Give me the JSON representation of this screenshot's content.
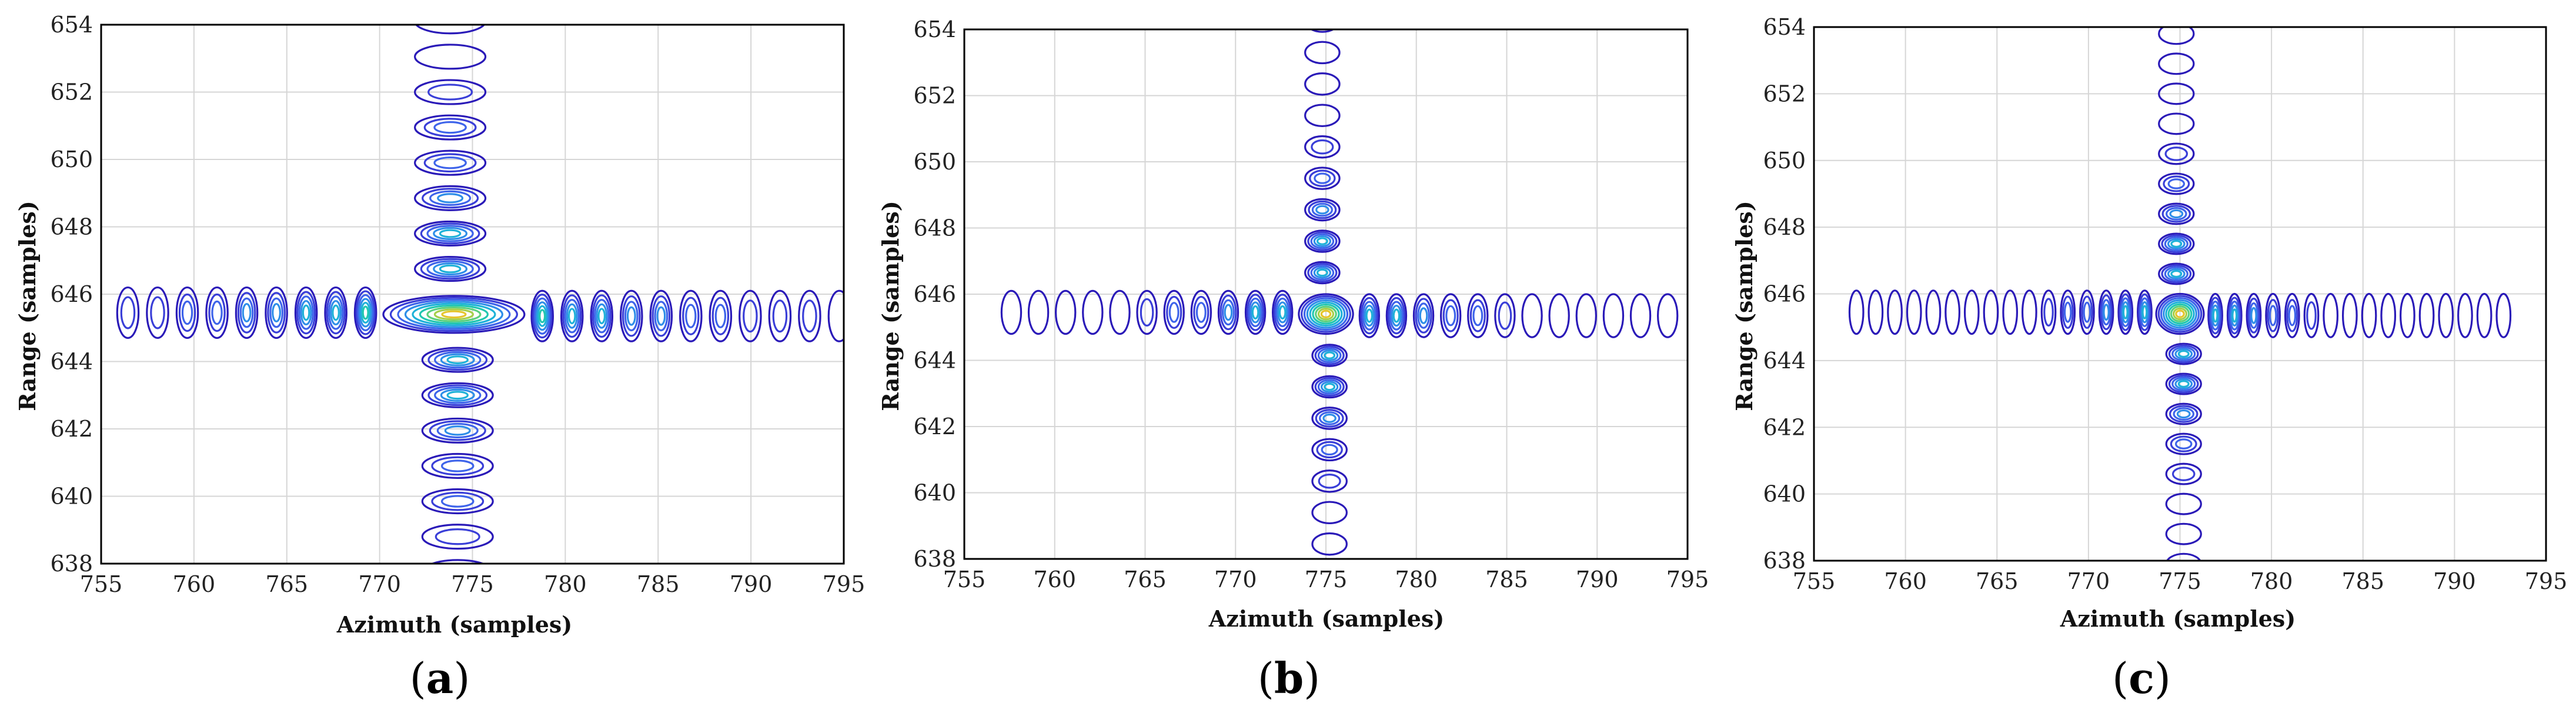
{
  "chart_data": [
    {
      "type": "contour",
      "panel_label_text": "a",
      "xlabel": "Azimuth (samples)",
      "ylabel": "Range (samples)",
      "xlim": [
        755,
        795
      ],
      "ylim": [
        638,
        654
      ],
      "xticks": [
        755,
        760,
        765,
        770,
        775,
        780,
        785,
        790,
        795
      ],
      "yticks": [
        638,
        640,
        642,
        644,
        646,
        648,
        650,
        652,
        654
      ],
      "grid": true,
      "peak": {
        "azimuth": 774,
        "range": 645.4
      },
      "main_lobe": {
        "azimuth_halfwidth": 3.8,
        "range_halfwidth": 0.55
      },
      "range_sidelobe_spacing": 1.05,
      "azimuth_sidelobe_spacing": 1.6,
      "azimuth_extent": [
        755,
        795
      ],
      "range_extent": [
        638,
        654
      ],
      "contour_levels": 9
    },
    {
      "type": "contour",
      "panel_label_text": "b",
      "xlabel": "Azimuth (samples)",
      "ylabel": "Range (samples)",
      "xlim": [
        755,
        795
      ],
      "ylim": [
        638,
        654
      ],
      "xticks": [
        755,
        760,
        765,
        770,
        775,
        780,
        785,
        790,
        795
      ],
      "yticks": [
        638,
        640,
        642,
        644,
        646,
        648,
        650,
        652,
        654
      ],
      "grid": true,
      "peak": {
        "azimuth": 775,
        "range": 645.4
      },
      "main_lobe": {
        "azimuth_halfwidth": 1.5,
        "range_halfwidth": 0.6
      },
      "range_sidelobe_spacing": 0.95,
      "azimuth_sidelobe_spacing": 1.5,
      "azimuth_extent": [
        757,
        794
      ],
      "range_extent": [
        638,
        654
      ],
      "contour_levels": 9
    },
    {
      "type": "contour",
      "panel_label_text": "c",
      "xlabel": "Azimuth (samples)",
      "ylabel": "Range (samples)",
      "xlim": [
        755,
        795
      ],
      "ylim": [
        638,
        654
      ],
      "xticks": [
        755,
        760,
        765,
        770,
        775,
        780,
        785,
        790,
        795
      ],
      "yticks": [
        638,
        640,
        642,
        644,
        646,
        648,
        650,
        652,
        654
      ],
      "grid": true,
      "peak": {
        "azimuth": 775,
        "range": 645.4
      },
      "main_lobe": {
        "azimuth_halfwidth": 1.3,
        "range_halfwidth": 0.6
      },
      "range_sidelobe_spacing": 0.9,
      "azimuth_sidelobe_spacing": 1.05,
      "azimuth_extent": [
        757,
        793
      ],
      "range_extent": [
        638,
        654
      ],
      "contour_levels": 9
    }
  ],
  "colors": {
    "levels": [
      "#2a1ab8",
      "#3a3fd8",
      "#3e64ea",
      "#2f8ee8",
      "#1fb2d8",
      "#22c7b0",
      "#5cd07e",
      "#a6cf4a",
      "#e6c52c"
    ],
    "grid": "#d6d6d6",
    "frame": "#000000"
  }
}
